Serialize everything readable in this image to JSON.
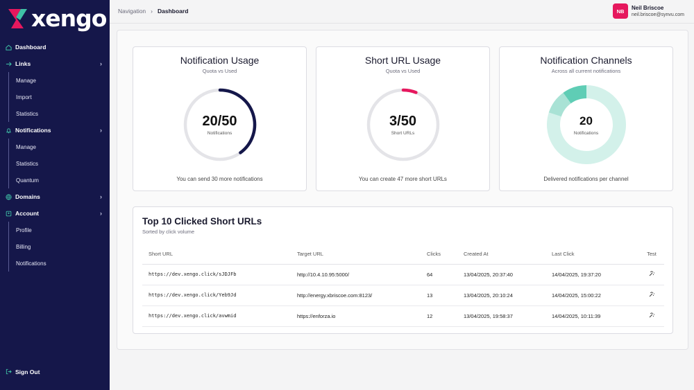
{
  "app": {
    "logo_text": "xengo"
  },
  "sidebar": {
    "dashboard": "Dashboard",
    "links": {
      "label": "Links",
      "items": [
        "Manage",
        "Import",
        "Statistics"
      ]
    },
    "notifications": {
      "label": "Notifications",
      "items": [
        "Manage",
        "Statistics",
        "Quantum"
      ]
    },
    "domains": {
      "label": "Domains"
    },
    "account": {
      "label": "Account",
      "items": [
        "Profile",
        "Billing",
        "Notifications"
      ]
    },
    "signout": "Sign Out"
  },
  "topbar": {
    "breadcrumb": [
      "Navigation",
      "Dashboard"
    ],
    "user": {
      "initials": "NB",
      "name": "Neil Briscoe",
      "email": "neil.briscoe@synvu.com"
    }
  },
  "cards": {
    "notification_usage": {
      "title": "Notification Usage",
      "subtitle": "Quota vs Used",
      "value": "20/50",
      "unit": "Notifications",
      "used": 20,
      "quota": 50,
      "footer": "You can send 30 more notifications",
      "color": "#15174a"
    },
    "short_url_usage": {
      "title": "Short URL Usage",
      "subtitle": "Quota vs Used",
      "value": "3/50",
      "unit": "Short URLs",
      "used": 3,
      "quota": 50,
      "footer": "You can create 47 more short URLs",
      "color": "#e6185e"
    },
    "notification_channels": {
      "title": "Notification Channels",
      "subtitle": "Across all current notifications",
      "value": "20",
      "unit": "Notifications",
      "footer": "Delivered notifications per channel",
      "segments": [
        {
          "value": 16,
          "color": "#d3f1ea"
        },
        {
          "value": 2,
          "color": "#a9e2d5"
        },
        {
          "value": 2,
          "color": "#5fcdb5"
        }
      ]
    }
  },
  "table": {
    "title": "Top 10 Clicked Short URLs",
    "subtitle": "Sorted by click volume",
    "columns": [
      "Short URL",
      "Target URL",
      "Clicks",
      "Created At",
      "Last Click",
      "Test"
    ],
    "rows": [
      {
        "short": "https://dev.xengo.click/sJDJFb",
        "target": "http://10.4.10.95:5000/",
        "clicks": "64",
        "created": "13/04/2025, 20:37:40",
        "last": "14/04/2025, 19:37:20"
      },
      {
        "short": "https://dev.xengo.click/Yeb9Jd",
        "target": "http://energy.xbriscoe.com:8123/",
        "clicks": "13",
        "created": "13/04/2025, 20:10:24",
        "last": "14/04/2025, 15:00:22"
      },
      {
        "short": "https://dev.xengo.click/avwmid",
        "target": "https://enforza.io",
        "clicks": "12",
        "created": "13/04/2025, 19:58:37",
        "last": "14/04/2025, 10:11:39"
      }
    ]
  },
  "colors": {
    "sidebar_bg": "#15174a",
    "accent_pink": "#e6185e",
    "accent_teal": "#3fc1a6"
  }
}
